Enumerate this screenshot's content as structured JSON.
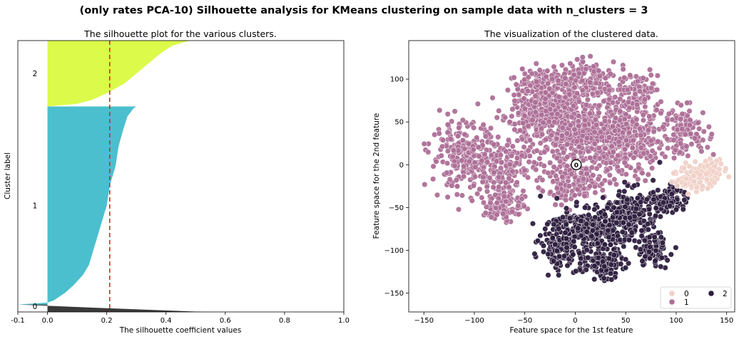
{
  "suptitle": "(only rates PCA-10) Silhouette analysis for KMeans clustering on sample data with n_clusters = 3",
  "chart_data": [
    {
      "type": "area",
      "title": "The silhouette plot for the various clusters.",
      "xlabel": "The silhouette coefficient values",
      "ylabel": "Cluster label",
      "xlim": [
        -0.1,
        1.0
      ],
      "ylim": [
        0,
        1030
      ],
      "xticks": [
        -0.1,
        0.0,
        0.2,
        0.4,
        0.6,
        0.8,
        1.0
      ],
      "xtick_labels": [
        "-0.1",
        "0.0",
        "0.2",
        "0.4",
        "0.6",
        "0.8",
        "1.0"
      ],
      "average_silhouette": 0.21,
      "average_line_color": "#d62728",
      "clusters": [
        {
          "label": "0",
          "color": "#3a3a3a",
          "y_start": 0,
          "y_end": 28,
          "profile": [
            [
              0.0,
              0.53
            ],
            [
              0.5,
              0.2
            ],
            [
              1.0,
              -0.1
            ]
          ]
        },
        {
          "label": "1",
          "color": "#4bbfce",
          "y_start": 28,
          "y_end": 780,
          "profile": [
            [
              0.0,
              -0.1
            ],
            [
              0.01,
              0.0
            ],
            [
              0.02,
              0.02
            ],
            [
              0.06,
              0.06
            ],
            [
              0.1,
              0.09
            ],
            [
              0.15,
              0.12
            ],
            [
              0.2,
              0.14
            ],
            [
              0.3,
              0.16
            ],
            [
              0.4,
              0.18
            ],
            [
              0.5,
              0.2
            ],
            [
              0.6,
              0.21
            ],
            [
              0.7,
              0.23
            ],
            [
              0.8,
              0.24
            ],
            [
              0.88,
              0.255
            ],
            [
              0.95,
              0.27
            ],
            [
              0.99,
              0.29
            ],
            [
              1.0,
              0.3
            ]
          ]
        },
        {
          "label": "2",
          "color": "#dcfa4a",
          "y_start": 780,
          "y_end": 1030,
          "profile": [
            [
              0.0,
              0.0
            ],
            [
              0.04,
              0.1
            ],
            [
              0.1,
              0.15
            ],
            [
              0.2,
              0.2
            ],
            [
              0.35,
              0.26
            ],
            [
              0.5,
              0.3
            ],
            [
              0.65,
              0.34
            ],
            [
              0.8,
              0.38
            ],
            [
              0.92,
              0.42
            ],
            [
              1.0,
              0.48
            ]
          ]
        }
      ]
    },
    {
      "type": "scatter",
      "title": "The visualization of the clustered data.",
      "xlabel": "Feature space for the 1st feature",
      "ylabel": "Feature space for the 2nd feature",
      "xlim": [
        -165,
        158
      ],
      "ylim": [
        -172,
        145
      ],
      "xticks": [
        -150,
        -100,
        -50,
        0,
        50,
        100,
        150
      ],
      "xtick_labels": [
        "−150",
        "−100",
        "−50",
        "0",
        "50",
        "100",
        "150"
      ],
      "yticks": [
        -150,
        -100,
        -50,
        0,
        50,
        100
      ],
      "ytick_labels": [
        "−150",
        "−100",
        "−50",
        "0",
        "50",
        "100"
      ],
      "legend_location": "lower-right",
      "legend": [
        {
          "label": "0",
          "color": "#f0d1c7"
        },
        {
          "label": "1",
          "color": "#ad6f97"
        },
        {
          "label": "2",
          "color": "#2d1e3e"
        }
      ],
      "center_marker": {
        "label": "0",
        "x": 1,
        "y": 0
      },
      "series": [
        {
          "cluster": "1",
          "color": "#ad6f97",
          "regions": [
            {
              "x": -25,
              "y": 60,
              "sx": 28,
              "sy": 28,
              "n": 380
            },
            {
              "x": 15,
              "y": 40,
              "sx": 30,
              "sy": 35,
              "n": 420
            },
            {
              "x": -110,
              "y": 10,
              "sx": 22,
              "sy": 25,
              "n": 230
            },
            {
              "x": -70,
              "y": 0,
              "sx": 25,
              "sy": 22,
              "n": 150
            },
            {
              "x": 10,
              "y": 98,
              "sx": 20,
              "sy": 14,
              "n": 150
            },
            {
              "x": -40,
              "y": 95,
              "sx": 15,
              "sy": 12,
              "n": 70
            },
            {
              "x": 55,
              "y": 25,
              "sx": 25,
              "sy": 28,
              "n": 250
            },
            {
              "x": 110,
              "y": 40,
              "sx": 15,
              "sy": 18,
              "n": 110
            },
            {
              "x": -70,
              "y": -45,
              "sx": 14,
              "sy": 15,
              "n": 110
            },
            {
              "x": 0,
              "y": -20,
              "sx": 22,
              "sy": 15,
              "n": 150
            },
            {
              "x": 60,
              "y": 85,
              "sx": 15,
              "sy": 15,
              "n": 80
            }
          ]
        },
        {
          "cluster": "2",
          "color": "#2d1e3e",
          "regions": [
            {
              "x": 15,
              "y": -75,
              "sx": 28,
              "sy": 16,
              "n": 320
            },
            {
              "x": 55,
              "y": -55,
              "sx": 20,
              "sy": 18,
              "n": 200
            },
            {
              "x": -15,
              "y": -100,
              "sx": 12,
              "sy": 14,
              "n": 110
            },
            {
              "x": 75,
              "y": -100,
              "sx": 12,
              "sy": 12,
              "n": 90
            },
            {
              "x": 25,
              "y": -115,
              "sx": 15,
              "sy": 12,
              "n": 100
            },
            {
              "x": 95,
              "y": -40,
              "sx": 10,
              "sy": 12,
              "n": 70
            }
          ]
        },
        {
          "cluster": "0",
          "color": "#f0d1c7",
          "regions": [
            {
              "x": 120,
              "y": -15,
              "sx": 12,
              "sy": 10,
              "n": 140
            },
            {
              "x": 138,
              "y": -5,
              "sx": 8,
              "sy": 7,
              "n": 50
            }
          ]
        }
      ]
    }
  ]
}
